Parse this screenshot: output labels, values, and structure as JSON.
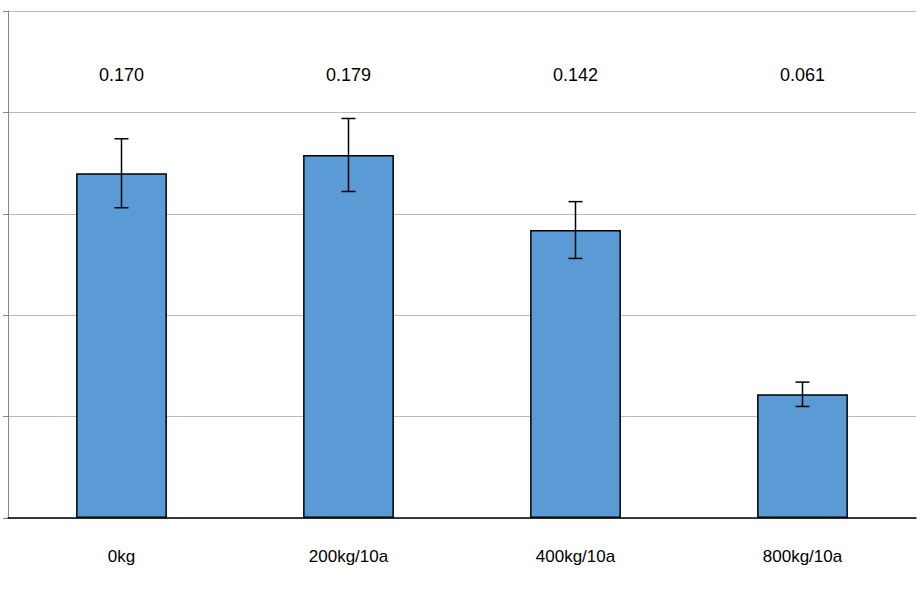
{
  "chart_data": {
    "type": "bar",
    "categories": [
      "0kg",
      "200kg/10a",
      "400kg/10a",
      "800kg/10a"
    ],
    "values": [
      0.17,
      0.179,
      0.142,
      0.061
    ],
    "value_labels": [
      "0.170",
      "0.179",
      "0.142",
      "0.061"
    ],
    "errors": [
      0.017,
      0.018,
      0.014,
      0.006
    ],
    "color": "#5b9bd5",
    "ylim": [
      0,
      0.25
    ],
    "yticks": [
      0,
      0.05,
      0.1,
      0.15,
      0.2,
      0.25
    ],
    "grid": true,
    "data_labels": true,
    "tick_labels": "x"
  }
}
